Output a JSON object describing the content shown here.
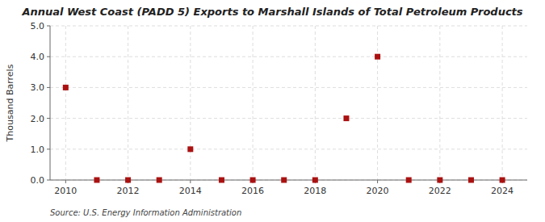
{
  "chart_data": {
    "type": "scatter",
    "title": "Annual West Coast (PADD 5) Exports to Marshall Islands of Total Petroleum Products",
    "ylabel": "Thousand Barrels",
    "annotation": "Source: U.S. Energy Information Administration",
    "x": [
      2010,
      2011,
      2012,
      2013,
      2014,
      2015,
      2016,
      2017,
      2018,
      2019,
      2020,
      2021,
      2022,
      2023,
      2024
    ],
    "values": [
      3.0,
      0.0,
      0.0,
      0.0,
      1.0,
      0.0,
      0.0,
      0.0,
      0.0,
      2.0,
      4.0,
      0.0,
      0.0,
      0.0,
      0.0
    ],
    "color": "#aa1111",
    "marker": "square",
    "xlim": [
      2009.5,
      2024.8
    ],
    "ylim": [
      0.0,
      5.0
    ],
    "xticks": [
      2010,
      2012,
      2014,
      2016,
      2018,
      2020,
      2022,
      2024
    ],
    "yticks": [
      {
        "value": 0.0,
        "label": "0.0"
      },
      {
        "value": 1.0,
        "label": "1.0"
      },
      {
        "value": 2.0,
        "label": "2.0"
      },
      {
        "value": 3.0,
        "label": "3.0"
      },
      {
        "value": 4.0,
        "label": "4.0"
      },
      {
        "value": 5.0,
        "label": "5.0"
      }
    ],
    "grid": true
  }
}
